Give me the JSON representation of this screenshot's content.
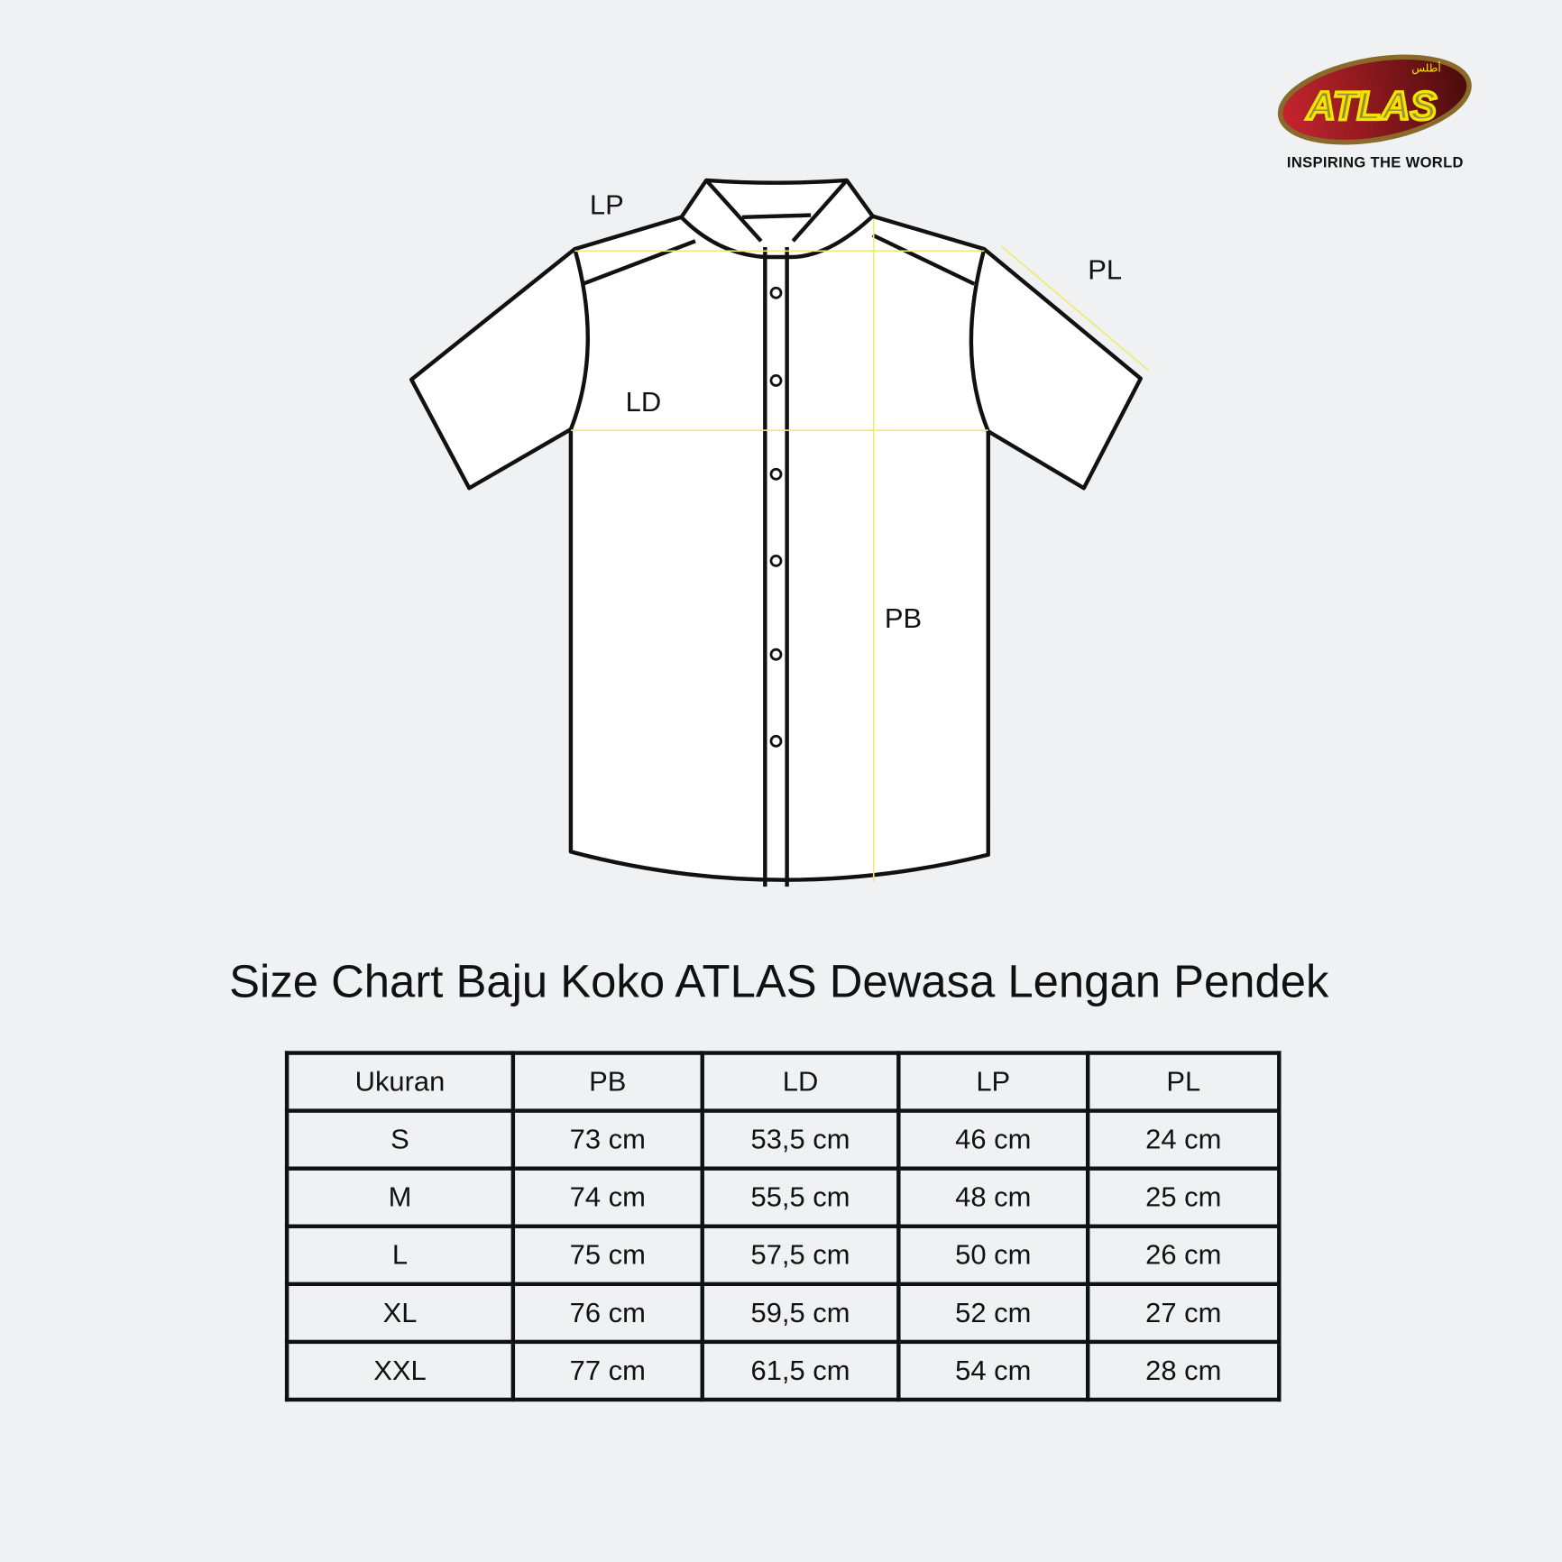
{
  "brand": {
    "logo_text": "ATLAS",
    "logo_arabic": "أطلس",
    "tagline": "INSPIRING THE WORLD",
    "colors": {
      "red": "#b3202a",
      "gold": "#f2e600"
    }
  },
  "diagram": {
    "labels": {
      "lp": "LP",
      "pl": "PL",
      "ld": "LD",
      "pb": "PB"
    },
    "guide_color": "#f0ea70"
  },
  "title": "Size Chart Baju Koko ATLAS Dewasa Lengan Pendek",
  "table": {
    "headers": [
      "Ukuran",
      "PB",
      "LD",
      "LP",
      "PL"
    ],
    "rows": [
      [
        "S",
        "73 cm",
        "53,5 cm",
        "46 cm",
        "24 cm"
      ],
      [
        "M",
        "74 cm",
        "55,5 cm",
        "48 cm",
        "25 cm"
      ],
      [
        "L",
        "75 cm",
        "57,5 cm",
        "50 cm",
        "26 cm"
      ],
      [
        "XL",
        "76 cm",
        "59,5 cm",
        "52 cm",
        "27 cm"
      ],
      [
        "XXL",
        "77 cm",
        "61,5 cm",
        "54 cm",
        "28 cm"
      ]
    ]
  }
}
